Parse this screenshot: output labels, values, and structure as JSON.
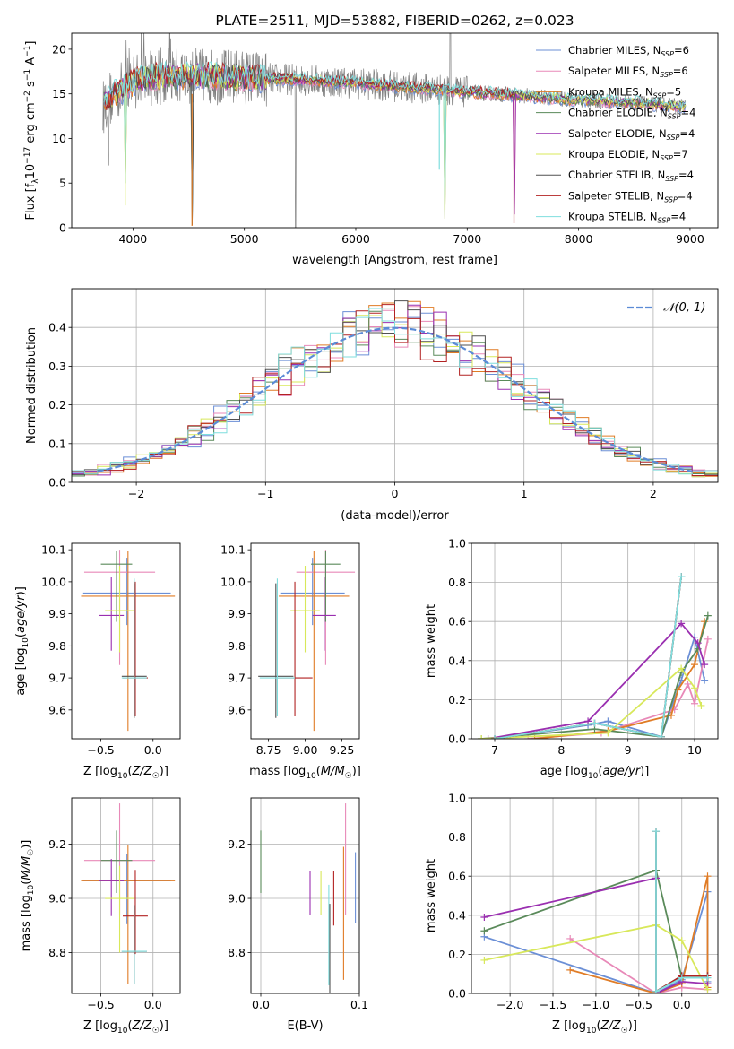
{
  "chart_data": [
    {
      "id": "spectrum",
      "type": "line",
      "title": "PLATE=2511, MJD=53882, FIBERID=0262, z=0.023",
      "xlabel": "wavelength [Angstrom, rest frame]",
      "ylabel": "Flux [f_λ 10^-17 erg cm^-2 s^-1 A^-1]",
      "xlim": [
        3450,
        9250
      ],
      "ylim": [
        0,
        21.8
      ],
      "xticks": [
        4000,
        5000,
        6000,
        7000,
        8000,
        9000
      ],
      "yticks": [
        0,
        5,
        10,
        15,
        20
      ],
      "legend_position": "top-right",
      "models": [
        {
          "name": "Chabrier MILES",
          "nssp": "6",
          "color": "#6b8fd6"
        },
        {
          "name": "Salpeter MILES",
          "nssp": "6",
          "color": "#e889b8"
        },
        {
          "name": "Kroupa MILES",
          "nssp": "5",
          "color": "#e07c26"
        },
        {
          "name": "Chabrier ELODIE",
          "nssp": "4",
          "color": "#5a8a5a"
        },
        {
          "name": "Salpeter ELODIE",
          "nssp": "4",
          "color": "#9a2fb0"
        },
        {
          "name": "Kroupa ELODIE",
          "nssp": "7",
          "color": "#d8e85a"
        },
        {
          "name": "Chabrier STELIB",
          "nssp": "4",
          "color": "#505050"
        },
        {
          "name": "Salpeter STELIB",
          "nssp": "4",
          "color": "#b22222"
        },
        {
          "name": "Kroupa STELIB",
          "nssp": "4",
          "color": "#7fdede"
        }
      ],
      "observed_color": "#808080",
      "model_anchors": [
        [
          3740,
          14.0
        ],
        [
          3900,
          15.5
        ],
        [
          4050,
          16.7
        ],
        [
          4300,
          17.0
        ],
        [
          4600,
          17.0
        ],
        [
          5000,
          16.8
        ],
        [
          5500,
          16.6
        ],
        [
          6000,
          16.2
        ],
        [
          6500,
          15.7
        ],
        [
          7000,
          15.2
        ],
        [
          7500,
          14.8
        ],
        [
          7900,
          14.4
        ],
        [
          8500,
          14.0
        ],
        [
          9000,
          13.5
        ]
      ],
      "absorption_dips": [
        [
          3935,
          5
        ],
        [
          4530,
          0.3
        ],
        [
          6800,
          1
        ],
        [
          7420,
          1.5
        ]
      ]
    },
    {
      "id": "residuals",
      "type": "histogram",
      "xlabel": "(data-model)/error",
      "ylabel": "Normed distribution",
      "xlim": [
        -2.5,
        2.5
      ],
      "ylim": [
        0,
        0.5
      ],
      "xticks": [
        -2,
        -1,
        0,
        1,
        2
      ],
      "xtick_labels": [
        "−2",
        "−1",
        "0",
        "1",
        "2"
      ],
      "yticks": [
        0.0,
        0.1,
        0.2,
        0.3,
        0.4
      ],
      "ytick_labels": [
        "0.0",
        "0.1",
        "0.2",
        "0.3",
        "0.4"
      ],
      "grid": true,
      "legend": "𝒩(0, 1)",
      "gaussian_color": "#5b8bd6",
      "bin_width": 0.1
    },
    {
      "id": "age-vs-Z",
      "type": "errorbar",
      "xlabel": "Z [log10(Z/Z☉)]",
      "ylabel": "age [log10(age/yr)]",
      "xlim": [
        -0.78,
        0.26
      ],
      "ylim": [
        9.51,
        10.12
      ],
      "xticks": [
        -0.5,
        0.0
      ],
      "xtick_labels": [
        "−0.5",
        "0.0"
      ],
      "yticks": [
        9.6,
        9.7,
        9.8,
        9.9,
        10.0,
        10.1
      ],
      "ytick_labels": [
        "9.6",
        "9.7",
        "9.8",
        "9.9",
        "10.0",
        "10.1"
      ],
      "points": [
        {
          "x": -0.25,
          "xerr": 0.42,
          "y": 9.965,
          "yerr": [
            0.1,
            0.11
          ],
          "color": "#6b8fd6"
        },
        {
          "x": -0.32,
          "xerr": 0.34,
          "y": 10.03,
          "yerr": [
            0.29,
            0.07
          ],
          "color": "#e889b8"
        },
        {
          "x": -0.24,
          "xerr": 0.45,
          "y": 9.955,
          "yerr": [
            0.42,
            0.14
          ],
          "color": "#e07c26"
        },
        {
          "x": -0.35,
          "xerr": 0.15,
          "y": 10.055,
          "yerr": [
            0.18,
            0.04
          ],
          "color": "#5a8a5a"
        },
        {
          "x": -0.4,
          "xerr": 0.12,
          "y": 9.895,
          "yerr": [
            0.11,
            0.12
          ],
          "color": "#9a2fb0"
        },
        {
          "x": -0.32,
          "xerr": 0.14,
          "y": 9.91,
          "yerr": [
            0.13,
            0.14
          ],
          "color": "#d8e85a"
        },
        {
          "x": -0.18,
          "xerr": 0.12,
          "y": 9.705,
          "yerr": [
            0.13,
            0.29
          ],
          "color": "#505050"
        },
        {
          "x": -0.17,
          "xerr": 0.12,
          "y": 9.7,
          "yerr": [
            0.12,
            0.3
          ],
          "color": "#b22222"
        },
        {
          "x": -0.18,
          "xerr": 0.12,
          "y": 9.7,
          "yerr": [
            0.12,
            0.31
          ],
          "color": "#7fdede"
        }
      ]
    },
    {
      "id": "age-vs-mass",
      "type": "errorbar",
      "xlabel": "mass [log10(M/M☉)]",
      "ylabel": "",
      "xlim": [
        8.63,
        9.37
      ],
      "ylim": [
        9.51,
        10.12
      ],
      "xticks": [
        8.75,
        9.0,
        9.25
      ],
      "xtick_labels": [
        "8.75",
        "9.00",
        "9.25"
      ],
      "yticks": [
        9.6,
        9.7,
        9.8,
        9.9,
        10.0,
        10.1
      ],
      "ytick_labels": [
        "9.6",
        "9.7",
        "9.8",
        "9.9",
        "10.0",
        "10.1"
      ],
      "points": [
        {
          "x": 9.05,
          "xerr": 0.22,
          "y": 9.965,
          "yerr": [
            0.1,
            0.11
          ],
          "color": "#6b8fd6"
        },
        {
          "x": 9.14,
          "xerr": 0.2,
          "y": 10.03,
          "yerr": [
            0.29,
            0.07
          ],
          "color": "#e889b8"
        },
        {
          "x": 9.06,
          "xerr": 0.24,
          "y": 9.955,
          "yerr": [
            0.42,
            0.14
          ],
          "color": "#e07c26"
        },
        {
          "x": 9.14,
          "xerr": 0.1,
          "y": 10.055,
          "yerr": [
            0.18,
            0.04
          ],
          "color": "#5a8a5a"
        },
        {
          "x": 9.13,
          "xerr": 0.08,
          "y": 9.895,
          "yerr": [
            0.11,
            0.12
          ],
          "color": "#9a2fb0"
        },
        {
          "x": 9.0,
          "xerr": 0.1,
          "y": 9.91,
          "yerr": [
            0.13,
            0.14
          ],
          "color": "#d8e85a"
        },
        {
          "x": 8.8,
          "xerr": 0.12,
          "y": 9.705,
          "yerr": [
            0.13,
            0.29
          ],
          "color": "#505050"
        },
        {
          "x": 8.93,
          "xerr": 0.12,
          "y": 9.7,
          "yerr": [
            0.12,
            0.3
          ],
          "color": "#b22222"
        },
        {
          "x": 8.81,
          "xerr": 0.12,
          "y": 9.7,
          "yerr": [
            0.12,
            0.31
          ],
          "color": "#7fdede"
        }
      ]
    },
    {
      "id": "weight-vs-age",
      "type": "line",
      "xlabel": "age [log10(age/yr)]",
      "ylabel": "mass weight",
      "xlim": [
        6.65,
        10.35
      ],
      "ylim": [
        0.0,
        1.0
      ],
      "xticks": [
        7,
        8,
        9,
        10
      ],
      "xtick_labels": [
        "7",
        "8",
        "9",
        "10"
      ],
      "yticks": [
        0.0,
        0.2,
        0.4,
        0.6,
        0.8,
        1.0
      ],
      "ytick_labels": [
        "0.0",
        "0.2",
        "0.4",
        "0.6",
        "0.8",
        "1.0"
      ],
      "grid": true,
      "series": [
        {
          "color": "#6b8fd6",
          "x": [
            7.0,
            8.4,
            8.7,
            9.5,
            9.8,
            10.0,
            10.15
          ],
          "y": [
            0.0,
            0.07,
            0.09,
            0.01,
            0.3,
            0.52,
            0.3
          ]
        },
        {
          "color": "#e889b8",
          "x": [
            7.5,
            8.6,
            9.7,
            9.9,
            10.0,
            10.2
          ],
          "y": [
            0.0,
            0.03,
            0.15,
            0.28,
            0.18,
            0.51
          ]
        },
        {
          "color": "#e07c26",
          "x": [
            7.6,
            8.7,
            9.65,
            9.75,
            10.0,
            10.15
          ],
          "y": [
            0.0,
            0.04,
            0.12,
            0.25,
            0.38,
            0.6
          ]
        },
        {
          "color": "#5a8a5a",
          "x": [
            6.8,
            8.5,
            9.5,
            9.8,
            10.05,
            10.2
          ],
          "y": [
            0.0,
            0.05,
            0.01,
            0.34,
            0.46,
            0.63
          ]
        },
        {
          "color": "#9a2fb0",
          "x": [
            6.9,
            8.4,
            9.8,
            10.05,
            10.15
          ],
          "y": [
            0.0,
            0.09,
            0.59,
            0.49,
            0.38
          ]
        },
        {
          "color": "#d8e85a",
          "x": [
            6.8,
            8.7,
            9.8,
            10.0,
            10.1
          ],
          "y": [
            0.0,
            0.03,
            0.36,
            0.26,
            0.17
          ]
        },
        {
          "color": "#505050",
          "x": [
            7.0,
            8.5,
            9.5,
            9.8
          ],
          "y": [
            0.0,
            0.08,
            0.01,
            0.83
          ]
        },
        {
          "color": "#b22222",
          "x": [
            7.0,
            8.5,
            9.5,
            9.8
          ],
          "y": [
            0.0,
            0.08,
            0.01,
            0.83
          ]
        },
        {
          "color": "#7fdede",
          "x": [
            7.0,
            8.5,
            9.5,
            9.8
          ],
          "y": [
            0.0,
            0.08,
            0.01,
            0.83
          ]
        }
      ]
    },
    {
      "id": "mass-vs-Z",
      "type": "errorbar",
      "xlabel": "Z [log10(Z/Z☉)]",
      "ylabel": "mass [log10(M/M☉)]",
      "xlim": [
        -0.78,
        0.26
      ],
      "ylim": [
        8.65,
        9.37
      ],
      "xticks": [
        -0.5,
        0.0
      ],
      "xtick_labels": [
        "−0.5",
        "0.0"
      ],
      "yticks": [
        8.8,
        9.0,
        9.2
      ],
      "ytick_labels": [
        "8.8",
        "9.0",
        "9.2"
      ],
      "grid": true,
      "points": [
        {
          "x": -0.25,
          "xerr": 0.42,
          "y": 9.065,
          "yerr": [
            0.16,
            0.1
          ],
          "color": "#6b8fd6"
        },
        {
          "x": -0.32,
          "xerr": 0.34,
          "y": 9.14,
          "yerr": [
            0.2,
            0.21
          ],
          "color": "#e889b8"
        },
        {
          "x": -0.24,
          "xerr": 0.45,
          "y": 9.065,
          "yerr": [
            0.38,
            0.13
          ],
          "color": "#e07c26"
        },
        {
          "x": -0.35,
          "xerr": 0.15,
          "y": 9.14,
          "yerr": [
            0.12,
            0.11
          ],
          "color": "#5a8a5a"
        },
        {
          "x": -0.4,
          "xerr": 0.12,
          "y": 9.065,
          "yerr": [
            0.13,
            0.08
          ],
          "color": "#9a2fb0"
        },
        {
          "x": -0.32,
          "xerr": 0.14,
          "y": 9.0,
          "yerr": [
            0.2,
            0.12
          ],
          "color": "#d8e85a"
        },
        {
          "x": -0.18,
          "xerr": 0.12,
          "y": 8.805,
          "yerr": [
            0.12,
            0.17
          ],
          "color": "#505050"
        },
        {
          "x": -0.17,
          "xerr": 0.12,
          "y": 8.935,
          "yerr": [
            0.14,
            0.17
          ],
          "color": "#b22222"
        },
        {
          "x": -0.18,
          "xerr": 0.12,
          "y": 8.805,
          "yerr": [
            0.12,
            0.17
          ],
          "color": "#7fdede"
        }
      ]
    },
    {
      "id": "mass-vs-ebv",
      "type": "errorbar",
      "xlabel": "E(B-V)",
      "ylabel": "",
      "xlim": [
        -0.01,
        0.1
      ],
      "ylim": [
        8.65,
        9.37
      ],
      "xticks": [
        0.0,
        0.1
      ],
      "xtick_labels": [
        "0.0",
        "0.1"
      ],
      "yticks": [
        8.8,
        9.0,
        9.2
      ],
      "ytick_labels": [
        "8.8",
        "9.0",
        "9.2"
      ],
      "grid": true,
      "points": [
        {
          "x": 0.096,
          "y": 9.04,
          "yerr": [
            0.13,
            0.13
          ],
          "color": "#6b8fd6"
        },
        {
          "x": 0.086,
          "y": 9.14,
          "yerr": [
            0.2,
            0.21
          ],
          "color": "#e889b8"
        },
        {
          "x": 0.084,
          "y": 9.0,
          "yerr": [
            0.3,
            0.19
          ],
          "color": "#e07c26"
        },
        {
          "x": 0.0,
          "y": 9.14,
          "yerr": [
            0.12,
            0.11
          ],
          "color": "#5a8a5a"
        },
        {
          "x": 0.05,
          "y": 9.02,
          "yerr": [
            0.08,
            0.08
          ],
          "color": "#9a2fb0"
        },
        {
          "x": 0.061,
          "y": 9.02,
          "yerr": [
            0.08,
            0.08
          ],
          "color": "#d8e85a"
        },
        {
          "x": 0.07,
          "y": 8.85,
          "yerr": [
            0.2,
            0.13
          ],
          "color": "#505050"
        },
        {
          "x": 0.074,
          "y": 9.0,
          "yerr": [
            0.1,
            0.1
          ],
          "color": "#b22222"
        },
        {
          "x": 0.069,
          "y": 8.9,
          "yerr": [
            0.22,
            0.15
          ],
          "color": "#7fdede"
        }
      ]
    },
    {
      "id": "weight-vs-Z",
      "type": "line",
      "xlabel": "Z [log10(Z/Z☉)]",
      "ylabel": "mass weight",
      "xlim": [
        -2.45,
        0.42
      ],
      "ylim": [
        0.0,
        1.0
      ],
      "xticks": [
        -2.0,
        -1.5,
        -1.0,
        -0.5,
        0.0
      ],
      "xtick_labels": [
        "−2.0",
        "−1.5",
        "−1.0",
        "−0.5",
        "0.0"
      ],
      "yticks": [
        0.0,
        0.2,
        0.4,
        0.6,
        0.8,
        1.0
      ],
      "ytick_labels": [
        "0.0",
        "0.2",
        "0.4",
        "0.6",
        "0.8",
        "1.0"
      ],
      "grid": true,
      "series": [
        {
          "color": "#6b8fd6",
          "x": [
            -2.3,
            -0.3,
            0.0,
            0.3,
            0.3
          ],
          "y": [
            0.29,
            0.0,
            0.07,
            0.52,
            0.06
          ]
        },
        {
          "color": "#e889b8",
          "x": [
            -1.3,
            -0.3,
            0.0,
            0.3
          ],
          "y": [
            0.28,
            0.0,
            0.03,
            0.02
          ]
        },
        {
          "color": "#e07c26",
          "x": [
            -1.3,
            -0.3,
            0.0,
            0.3,
            0.3
          ],
          "y": [
            0.12,
            0.0,
            0.05,
            0.6,
            0.03
          ]
        },
        {
          "color": "#5a8a5a",
          "x": [
            -2.3,
            -0.3,
            0.0,
            0.3
          ],
          "y": [
            0.32,
            0.63,
            0.08,
            0.08
          ]
        },
        {
          "color": "#9a2fb0",
          "x": [
            -2.3,
            -0.3,
            -0.3,
            0.0,
            0.3
          ],
          "y": [
            0.39,
            0.59,
            0.0,
            0.06,
            0.05
          ]
        },
        {
          "color": "#d8e85a",
          "x": [
            -2.3,
            -0.3,
            0.0,
            0.3
          ],
          "y": [
            0.17,
            0.35,
            0.27,
            0.02
          ]
        },
        {
          "color": "#505050",
          "x": [
            -0.3,
            -0.3,
            0.0,
            0.3
          ],
          "y": [
            0.83,
            0.01,
            0.09,
            0.09
          ]
        },
        {
          "color": "#b22222",
          "x": [
            -0.3,
            -0.3,
            0.0,
            0.3
          ],
          "y": [
            0.83,
            0.01,
            0.09,
            0.09
          ]
        },
        {
          "color": "#7fdede",
          "x": [
            -0.3,
            -0.3,
            0.0,
            0.3
          ],
          "y": [
            0.83,
            0.01,
            0.08,
            0.08
          ]
        }
      ]
    }
  ]
}
